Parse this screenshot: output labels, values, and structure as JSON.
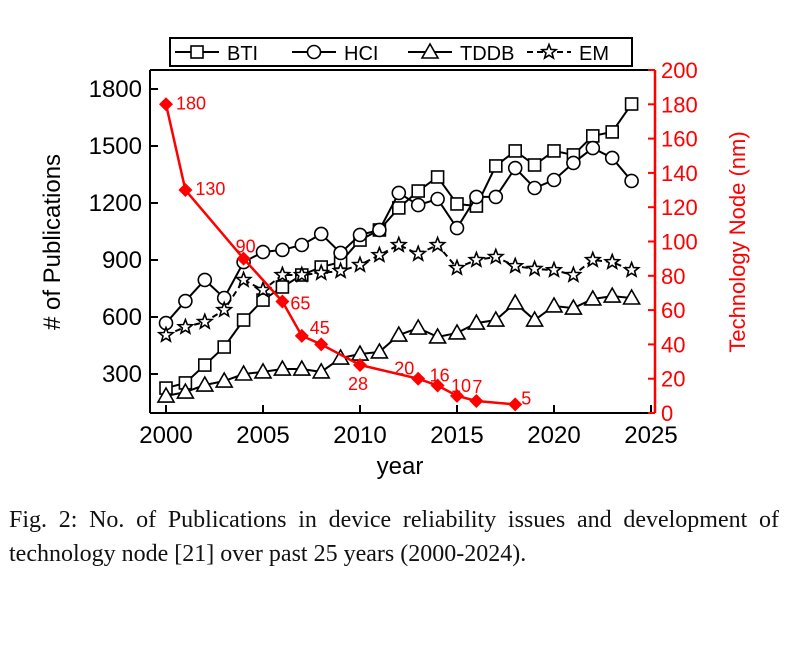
{
  "chart_data": {
    "type": "line",
    "xlabel": "year",
    "ylabel": "# of Publications",
    "y2label": "Technology Node (nm)",
    "xlim": [
      2000,
      2025
    ],
    "ylim": [
      95,
      1900
    ],
    "y2lim": [
      0,
      200
    ],
    "xticks": [
      "2000",
      "2005",
      "2010",
      "2015",
      "2020",
      "2025"
    ],
    "yticks": [
      "300",
      "600",
      "900",
      "1200",
      "1500",
      "1800"
    ],
    "y2ticks": [
      "0",
      "20",
      "40",
      "60",
      "80",
      "100",
      "120",
      "140",
      "160",
      "180",
      "200"
    ],
    "legend_placement": "top",
    "x": [
      2000,
      2001,
      2002,
      2003,
      2004,
      2005,
      2006,
      2007,
      2008,
      2009,
      2010,
      2011,
      2012,
      2013,
      2014,
      2015,
      2016,
      2017,
      2018,
      2019,
      2020,
      2021,
      2022,
      2023,
      2024
    ],
    "series": [
      {
        "name": "BTI",
        "marker": "square",
        "values": [
          226,
          253,
          347,
          442,
          584,
          689,
          758,
          821,
          863,
          889,
          1005,
          1058,
          1174,
          1263,
          1337,
          1195,
          1184,
          1395,
          1474,
          1400,
          1474,
          1453,
          1553,
          1574,
          1721
        ]
      },
      {
        "name": "HCI",
        "marker": "circle",
        "values": [
          568,
          684,
          795,
          700,
          889,
          942,
          953,
          979,
          1037,
          937,
          1032,
          1058,
          1253,
          1189,
          1221,
          1068,
          1232,
          1232,
          1384,
          1279,
          1321,
          1411,
          1489,
          1437,
          1316
        ]
      },
      {
        "name": "TDDB",
        "marker": "triangle",
        "values": [
          184,
          205,
          242,
          263,
          300,
          311,
          326,
          326,
          311,
          384,
          405,
          416,
          505,
          542,
          495,
          516,
          568,
          584,
          674,
          584,
          658,
          647,
          695,
          710,
          700
        ]
      },
      {
        "name": "EM",
        "marker": "star",
        "dashed": true,
        "values": [
          505,
          547,
          574,
          637,
          795,
          742,
          821,
          821,
          832,
          842,
          874,
          926,
          979,
          932,
          979,
          858,
          900,
          916,
          868,
          853,
          847,
          821,
          900,
          889,
          847
        ]
      }
    ],
    "tech_node": {
      "name": "Technology Node",
      "color": "#ff0000",
      "axis": "right",
      "x": [
        2000,
        2001,
        2004,
        2006,
        2007,
        2008,
        2010,
        2013,
        2014,
        2015,
        2016,
        2018
      ],
      "values": [
        180,
        130,
        90,
        65,
        45,
        40,
        28,
        20,
        16,
        10,
        7,
        5
      ],
      "labels": [
        "180",
        "130",
        "90",
        "65",
        "45",
        "",
        "28",
        "20",
        "16",
        "10",
        "7",
        "5"
      ]
    }
  },
  "caption": "Fig. 2: No. of Publications in device reliability issues and development of technology node  [21] over past 25 years (2000-2024)."
}
